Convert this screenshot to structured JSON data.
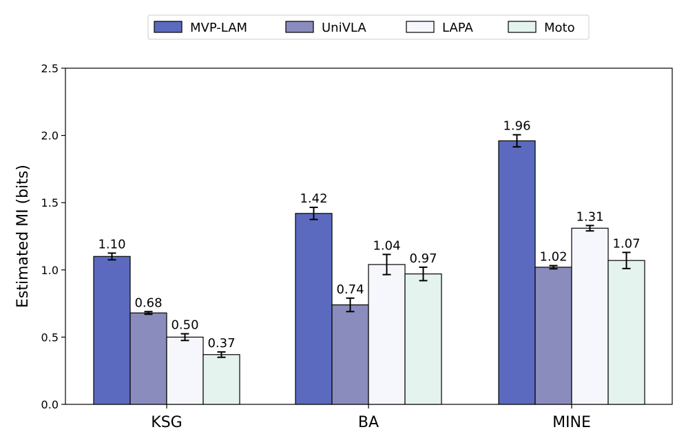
{
  "chart_data": {
    "type": "bar",
    "title": "",
    "xlabel": "",
    "ylabel": "Estimated MI (bits)",
    "ylim": [
      0,
      2.5
    ],
    "yticks": [
      "0.0",
      "0.5",
      "1.0",
      "1.5",
      "2.0",
      "2.5"
    ],
    "categories": [
      "KSG",
      "BA",
      "MINE"
    ],
    "legend_position": "top-center",
    "series": [
      {
        "name": "MVP-LAM",
        "color": "#5b6abf",
        "values": [
          1.1,
          1.42,
          1.96
        ],
        "labels": [
          "1.10",
          "1.42",
          "1.96"
        ],
        "errors": [
          0.025,
          0.045,
          0.045
        ]
      },
      {
        "name": "UniVLA",
        "color": "#8a8cbd",
        "values": [
          0.68,
          0.74,
          1.02
        ],
        "labels": [
          "0.68",
          "0.74",
          "1.02"
        ],
        "errors": [
          0.01,
          0.05,
          0.012
        ]
      },
      {
        "name": "LAPA",
        "color": "#f6f7fd",
        "values": [
          0.5,
          1.04,
          1.31
        ],
        "labels": [
          "0.50",
          "1.04",
          "1.31"
        ],
        "errors": [
          0.025,
          0.075,
          0.02
        ]
      },
      {
        "name": "Moto",
        "color": "#e4f3ee",
        "values": [
          0.37,
          0.97,
          1.07
        ],
        "labels": [
          "0.37",
          "0.97",
          "1.07"
        ],
        "errors": [
          0.02,
          0.05,
          0.06
        ]
      }
    ]
  }
}
